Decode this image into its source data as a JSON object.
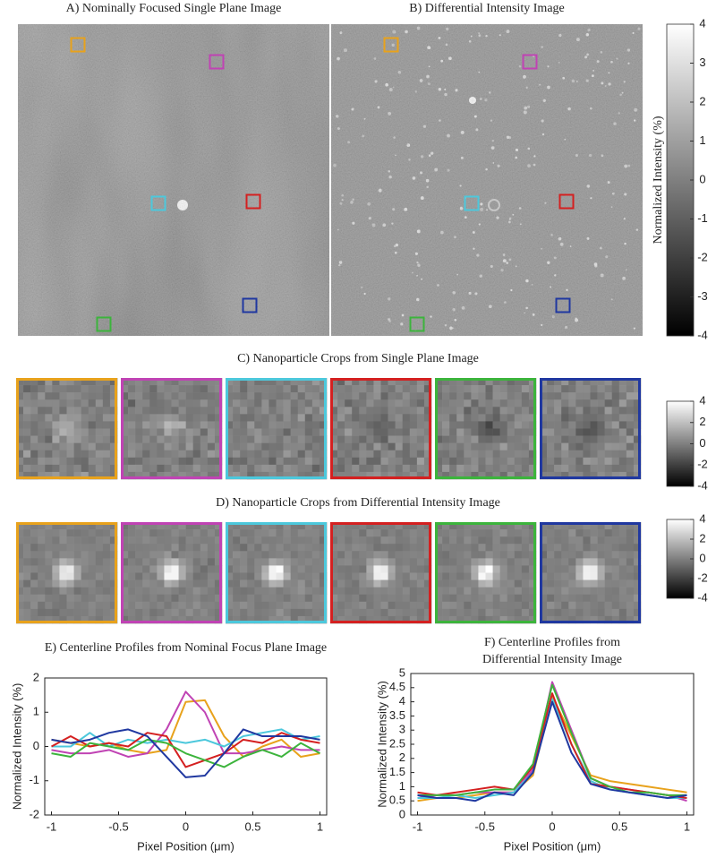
{
  "roi_colors": [
    "#e8a21c",
    "#c043b4",
    "#4cc8dc",
    "#d42020",
    "#3cb43c",
    "#2038a0"
  ],
  "image_panels": [
    {
      "title": "A) Nominally Focused Single Plane Image"
    },
    {
      "title": "B) Differential Intensity Image"
    }
  ],
  "main_colorbar": {
    "label": "Normalized Intensity (%)",
    "lim": [
      -4,
      4
    ],
    "ticks": [
      -4,
      -3,
      -2,
      -1,
      0,
      1,
      2,
      3,
      4
    ]
  },
  "crop_rows": [
    {
      "title": "C) Nanoparticle Crops from Single Plane Image",
      "colorbar": {
        "lim": [
          -4,
          4
        ],
        "ticks": [
          -4,
          -2,
          0,
          2,
          4
        ]
      }
    },
    {
      "title": "D) Nanoparticle Crops  from Differential Intensity Image",
      "colorbar": {
        "lim": [
          -4,
          4
        ],
        "ticks": [
          -4,
          -2,
          0,
          2,
          4
        ]
      }
    }
  ],
  "chart_data": [
    {
      "type": "line",
      "title": [
        "E) Centerline Profiles from Nominal Focus Plane Image"
      ],
      "x_label": "Pixel Position (μm)",
      "y_label": "Normalized Intensity (%)",
      "x": [
        -1,
        -0.857,
        -0.714,
        -0.571,
        -0.429,
        -0.286,
        -0.143,
        0,
        0.143,
        0.286,
        0.429,
        0.571,
        0.714,
        0.857,
        1
      ],
      "xlim": [
        -1.05,
        1.05
      ],
      "xticks": [
        -1,
        -0.5,
        0,
        0.5,
        1
      ],
      "ylim": [
        -2,
        2
      ],
      "yticks": [
        -2,
        -1,
        0,
        1,
        2
      ],
      "series": [
        {
          "color": "#e8a21c",
          "values": [
            0.2,
            0.1,
            0.0,
            0.1,
            -0.1,
            -0.2,
            -0.1,
            1.3,
            1.35,
            0.3,
            -0.3,
            0.0,
            0.2,
            -0.3,
            -0.2
          ]
        },
        {
          "color": "#c043b4",
          "values": [
            -0.1,
            -0.2,
            -0.2,
            -0.1,
            -0.3,
            -0.2,
            0.5,
            1.6,
            1.0,
            -0.2,
            -0.2,
            -0.1,
            0.0,
            -0.1,
            -0.1
          ]
        },
        {
          "color": "#4cc8dc",
          "values": [
            0.0,
            0.0,
            0.4,
            0.0,
            0.2,
            0.1,
            0.2,
            0.1,
            0.2,
            0.0,
            0.3,
            0.4,
            0.5,
            0.2,
            0.3
          ]
        },
        {
          "color": "#d42020",
          "values": [
            0.0,
            0.3,
            0.0,
            0.1,
            0.0,
            0.4,
            0.3,
            -0.6,
            -0.4,
            -0.2,
            0.2,
            0.1,
            0.4,
            0.2,
            0.1
          ]
        },
        {
          "color": "#3cb43c",
          "values": [
            -0.2,
            -0.3,
            0.1,
            0.0,
            -0.1,
            0.2,
            0.1,
            -0.2,
            -0.4,
            -0.6,
            -0.3,
            -0.1,
            -0.3,
            0.1,
            -0.2
          ]
        },
        {
          "color": "#2038a0",
          "values": [
            0.2,
            0.1,
            0.2,
            0.4,
            0.5,
            0.3,
            -0.3,
            -0.9,
            -0.85,
            -0.2,
            0.5,
            0.3,
            0.3,
            0.3,
            0.2
          ]
        }
      ]
    },
    {
      "type": "line",
      "title": [
        "F) Centerline Profiles from",
        "Differential Intensity Image"
      ],
      "x_label": "Pixel Position (μm)",
      "y_label": "Normalized Intensity (%)",
      "x": [
        -1,
        -0.857,
        -0.714,
        -0.571,
        -0.429,
        -0.286,
        -0.143,
        0,
        0.143,
        0.286,
        0.429,
        0.571,
        0.714,
        0.857,
        1
      ],
      "xlim": [
        -1.05,
        1.05
      ],
      "xticks": [
        -1,
        -0.5,
        0,
        0.5,
        1
      ],
      "ylim": [
        0,
        5
      ],
      "yticks": [
        0,
        0.5,
        1,
        1.5,
        2,
        2.5,
        3,
        3.5,
        4,
        4.5,
        5
      ],
      "series": [
        {
          "color": "#e8a21c",
          "values": [
            0.5,
            0.6,
            0.6,
            0.7,
            0.8,
            0.8,
            1.4,
            4.2,
            2.8,
            1.4,
            1.2,
            1.1,
            1.0,
            0.9,
            0.8
          ]
        },
        {
          "color": "#c043b4",
          "values": [
            0.6,
            0.7,
            0.7,
            0.8,
            0.8,
            0.8,
            1.6,
            4.7,
            3.0,
            1.3,
            1.0,
            0.9,
            0.8,
            0.7,
            0.5
          ]
        },
        {
          "color": "#4cc8dc",
          "values": [
            0.6,
            0.6,
            0.7,
            0.6,
            0.7,
            0.8,
            1.5,
            4.1,
            2.5,
            1.2,
            0.9,
            0.8,
            0.7,
            0.6,
            0.6
          ]
        },
        {
          "color": "#d42020",
          "values": [
            0.8,
            0.7,
            0.8,
            0.9,
            1.0,
            0.9,
            1.7,
            4.3,
            2.5,
            1.1,
            1.0,
            0.9,
            0.8,
            0.7,
            0.6
          ]
        },
        {
          "color": "#3cb43c",
          "values": [
            0.7,
            0.7,
            0.7,
            0.8,
            0.9,
            0.9,
            1.8,
            4.6,
            2.9,
            1.3,
            1.0,
            0.8,
            0.8,
            0.7,
            0.7
          ]
        },
        {
          "color": "#2038a0",
          "values": [
            0.7,
            0.6,
            0.6,
            0.5,
            0.8,
            0.7,
            1.5,
            4.0,
            2.2,
            1.1,
            0.9,
            0.8,
            0.7,
            0.6,
            0.7
          ]
        }
      ]
    }
  ]
}
